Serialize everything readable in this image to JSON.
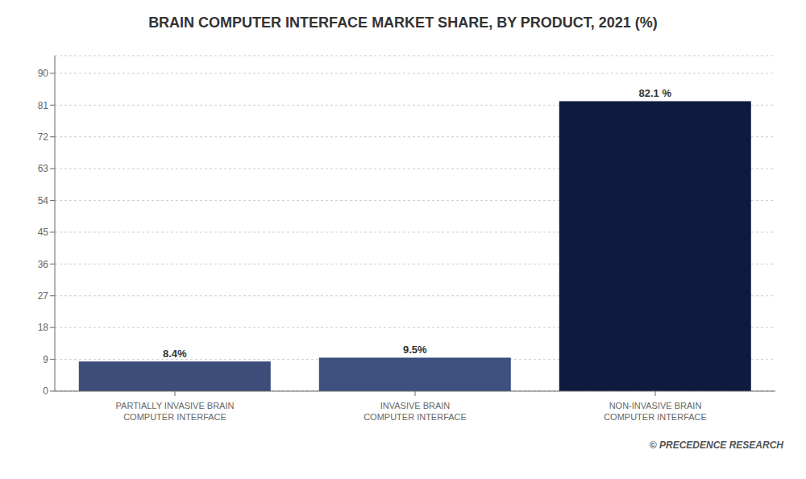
{
  "chart_data": {
    "type": "bar",
    "title": "BRAIN COMPUTER INTERFACE MARKET SHARE, BY PRODUCT, 2021 (%)",
    "categories": [
      "PARTIALLY INVASIVE BRAIN\nCOMPUTER INTERFACE",
      "INVASIVE BRAIN\nCOMPUTER INTERFACE",
      "NON-INVASIVE BRAIN\nCOMPUTER INTERFACE"
    ],
    "values": [
      8.4,
      9.5,
      82.1
    ],
    "value_labels": [
      "8.4%",
      "9.5%",
      "82.1 %"
    ],
    "colors": [
      "#3d4e7a",
      "#3d5080",
      "#0d1b3e"
    ],
    "ylim": [
      0,
      95
    ],
    "yticks": [
      0,
      9,
      18,
      27,
      36,
      45,
      54,
      63,
      72,
      81,
      90
    ],
    "grid": true,
    "data_labels": true,
    "annotations": [
      "© PRECEDENCE RESEARCH"
    ]
  }
}
